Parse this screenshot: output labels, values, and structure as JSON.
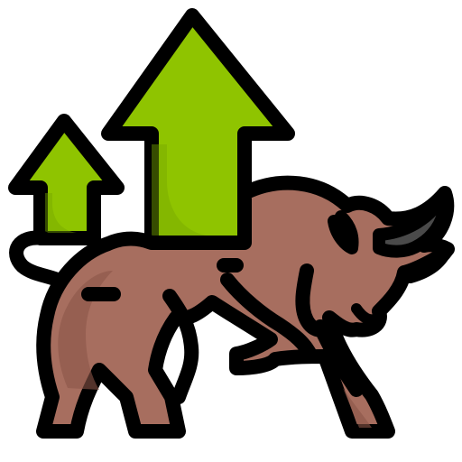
{
  "icon": {
    "name": "bull-market-icon",
    "colors": {
      "outline": "#000000",
      "arrow_fill": "#8fc400",
      "arrow_shadow": "#78a800",
      "body_fill": "#a76e5f",
      "body_shadow": "#8a5547",
      "horn_fill": "#4a4a4a",
      "background": "#ffffff"
    }
  }
}
